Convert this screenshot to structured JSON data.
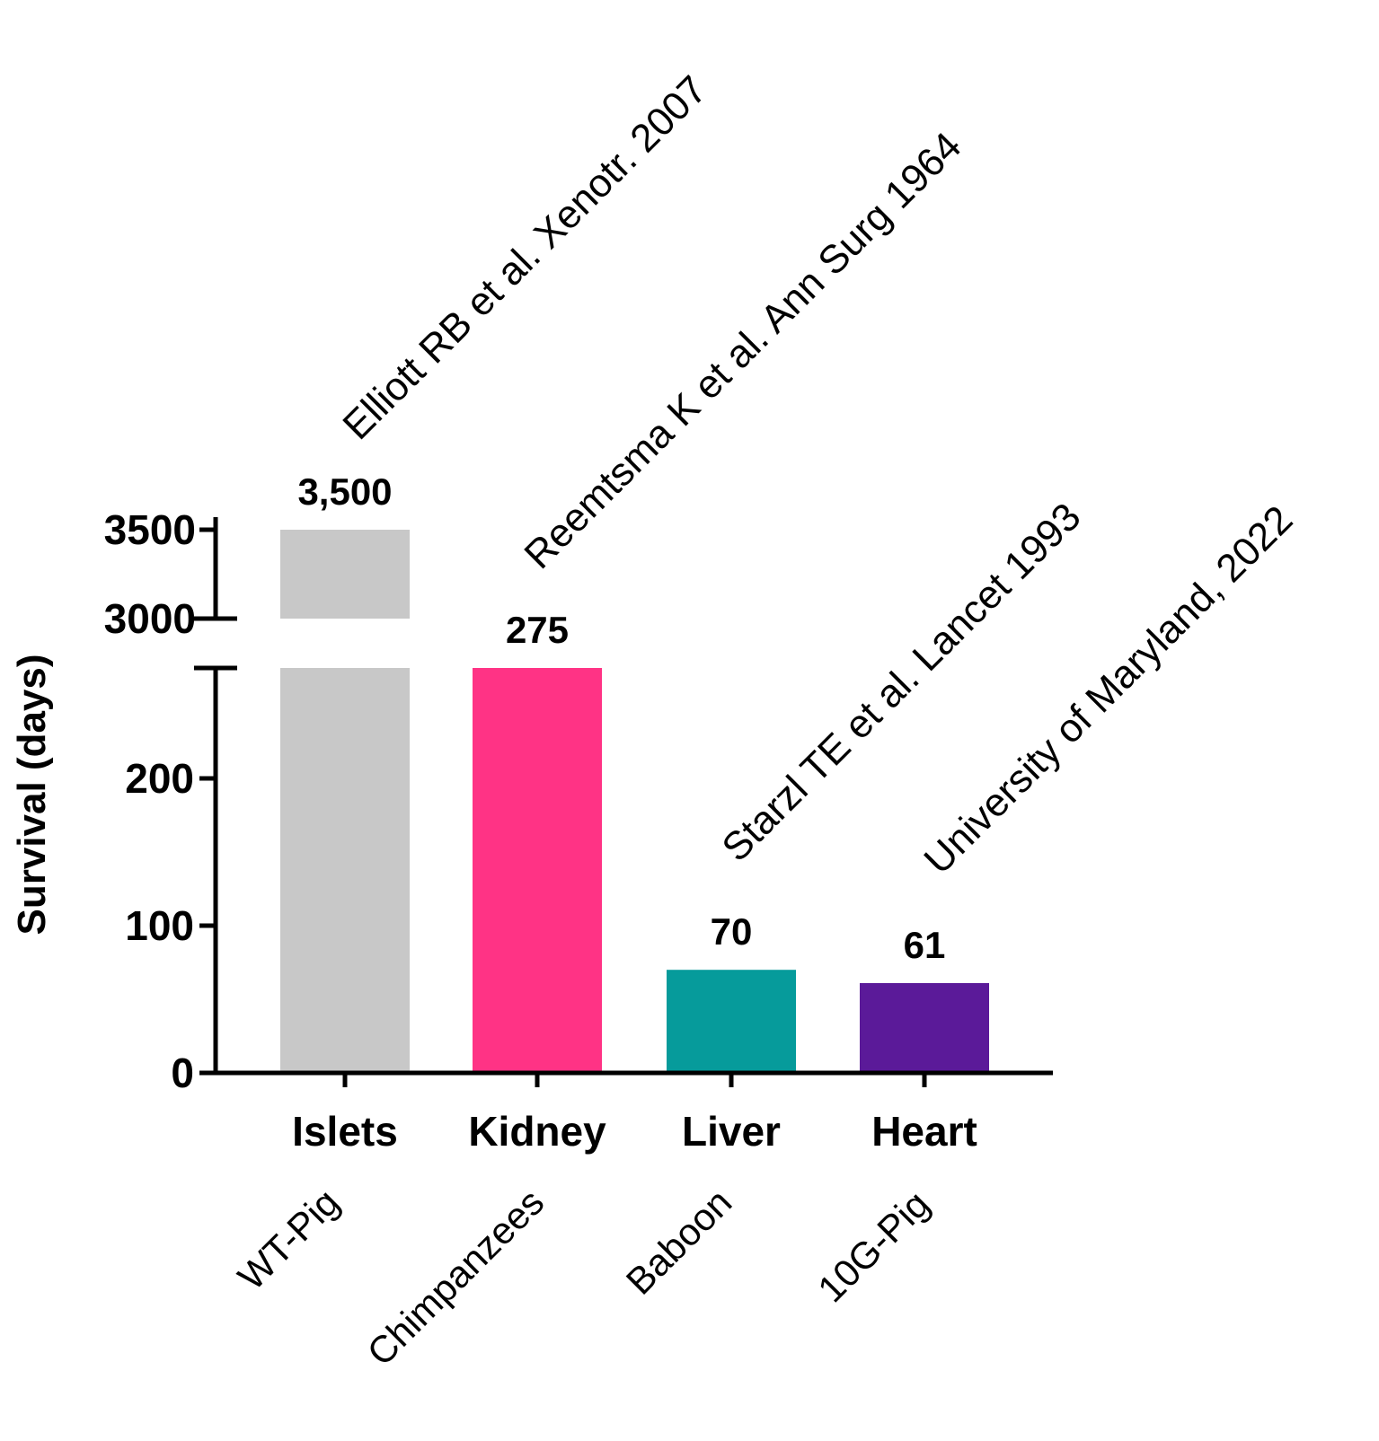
{
  "chart_data": {
    "type": "bar",
    "categories": [
      "Islets",
      "Kidney",
      "Liver",
      "Heart"
    ],
    "values": [
      3500,
      275,
      70,
      61
    ],
    "value_labels": [
      "3,500",
      "275",
      "70",
      "61"
    ],
    "colors": [
      "#c8c8c8",
      "#ff3385",
      "#069b9b",
      "#5b1a99"
    ],
    "species": [
      "WT-Pig",
      "Chimpanzees",
      "Baboon",
      "10G-Pig"
    ],
    "references": [
      "Elliott RB et al. Xenotr. 2007",
      "Reemtsma K et al. Ann Surg 1964",
      "Starzl TE et al. Lancet 1993",
      "University of Maryland, 2022"
    ],
    "ylabel": "Survival (days)",
    "axis_break": true,
    "lower_segment": {
      "ylim": [
        0,
        275
      ],
      "ticks": [
        0,
        100,
        200
      ],
      "tick_labels": [
        "0",
        "100",
        "200"
      ]
    },
    "upper_segment": {
      "ylim": [
        3000,
        3500
      ],
      "ticks": [
        3000,
        3500
      ],
      "tick_labels": [
        "3000",
        "3500"
      ]
    }
  }
}
